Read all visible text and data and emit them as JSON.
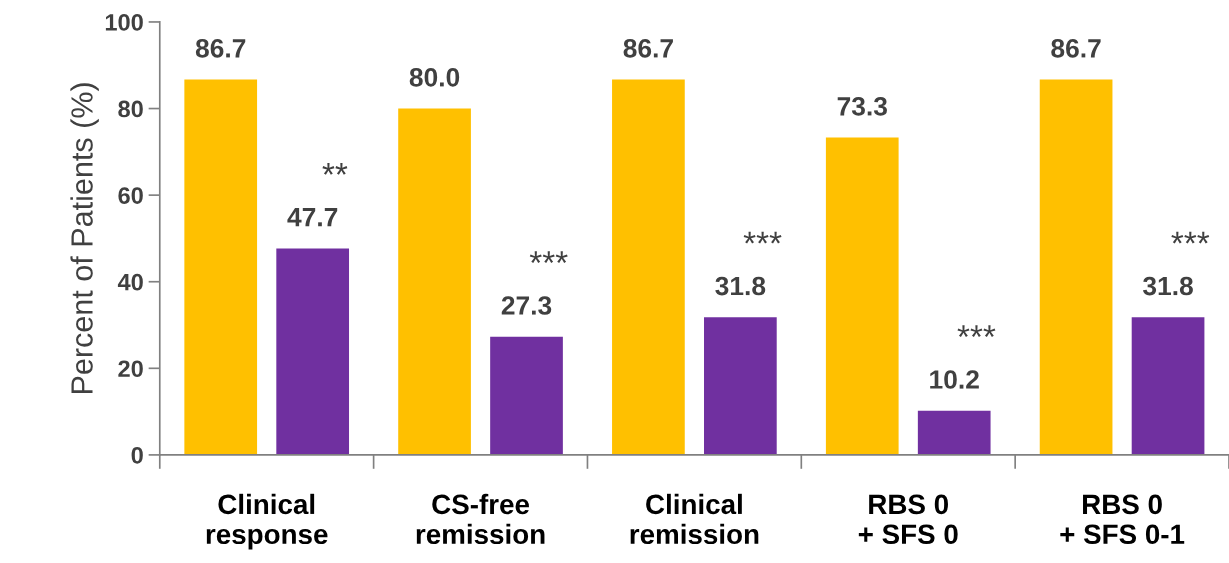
{
  "chart_data": {
    "type": "bar",
    "ylabel": "Percent of Patients (%)",
    "categories": [
      "Clinical\nresponse",
      "CS-free\nremission",
      "Clinical\nremission",
      "RBS 0\n+ SFS 0",
      "RBS 0\n+ SFS 0-1"
    ],
    "series": [
      {
        "color": "#ffc000",
        "values": [
          86.7,
          80.0,
          86.7,
          73.3,
          86.7
        ],
        "value_labels": [
          "86.7",
          "80.0",
          "86.7",
          "73.3",
          "86.7"
        ]
      },
      {
        "color": "#7030a0",
        "values": [
          47.7,
          27.3,
          31.8,
          10.2,
          31.8
        ],
        "value_labels": [
          "47.7",
          "27.3",
          "31.8",
          "10.2",
          "31.8"
        ]
      }
    ],
    "ylim": [
      0,
      100
    ],
    "yticks": [
      0,
      20,
      40,
      60,
      80,
      100
    ],
    "grid": false,
    "legend": false,
    "annotations": [
      "**",
      "***",
      "***",
      "***",
      "***"
    ]
  }
}
